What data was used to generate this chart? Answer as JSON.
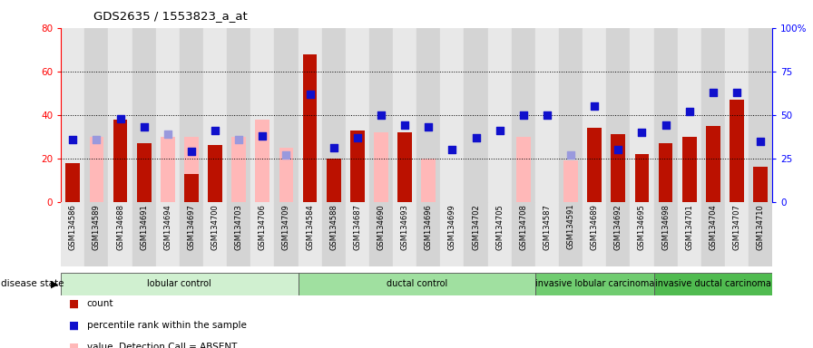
{
  "title": "GDS2635 / 1553823_a_at",
  "samples": [
    "GSM134586",
    "GSM134589",
    "GSM134688",
    "GSM134691",
    "GSM134694",
    "GSM134697",
    "GSM134700",
    "GSM134703",
    "GSM134706",
    "GSM134709",
    "GSM134584",
    "GSM134588",
    "GSM134687",
    "GSM134690",
    "GSM134693",
    "GSM134696",
    "GSM134699",
    "GSM134702",
    "GSM134705",
    "GSM134708",
    "GSM134587",
    "GSM134591",
    "GSM134689",
    "GSM134692",
    "GSM134695",
    "GSM134698",
    "GSM134701",
    "GSM134704",
    "GSM134707",
    "GSM134710"
  ],
  "red_bars": [
    18,
    0,
    38,
    27,
    0,
    13,
    26,
    0,
    0,
    0,
    68,
    20,
    33,
    0,
    32,
    0,
    0,
    0,
    0,
    0,
    0,
    0,
    34,
    31,
    22,
    27,
    30,
    35,
    47,
    16
  ],
  "pink_bars": [
    0,
    30,
    0,
    0,
    30,
    30,
    0,
    30,
    38,
    25,
    0,
    0,
    0,
    32,
    0,
    20,
    0,
    0,
    0,
    30,
    0,
    19,
    0,
    0,
    0,
    0,
    0,
    0,
    0,
    0
  ],
  "blue_squares": [
    36,
    0,
    48,
    43,
    39,
    29,
    41,
    0,
    38,
    0,
    62,
    31,
    37,
    50,
    44,
    43,
    30,
    37,
    41,
    50,
    50,
    0,
    55,
    30,
    40,
    44,
    52,
    63,
    63,
    35
  ],
  "light_blue_sq": [
    0,
    36,
    0,
    0,
    39,
    0,
    0,
    36,
    0,
    27,
    0,
    0,
    0,
    0,
    0,
    0,
    0,
    0,
    0,
    0,
    0,
    27,
    0,
    0,
    0,
    0,
    0,
    0,
    0,
    0
  ],
  "absent_red": [
    false,
    true,
    false,
    false,
    true,
    true,
    false,
    true,
    true,
    true,
    false,
    false,
    false,
    true,
    false,
    true,
    true,
    true,
    true,
    true,
    true,
    true,
    false,
    false,
    false,
    false,
    false,
    false,
    false,
    false
  ],
  "absent_blue": [
    false,
    true,
    false,
    false,
    true,
    false,
    false,
    true,
    false,
    true,
    false,
    false,
    false,
    false,
    false,
    false,
    false,
    false,
    false,
    false,
    false,
    true,
    false,
    false,
    false,
    false,
    false,
    false,
    false,
    false
  ],
  "groups": [
    {
      "label": "lobular control",
      "start": 0,
      "end": 10,
      "color": "#d0f0d0"
    },
    {
      "label": "ductal control",
      "start": 10,
      "end": 20,
      "color": "#a0e0a0"
    },
    {
      "label": "invasive lobular carcinoma",
      "start": 20,
      "end": 25,
      "color": "#70cc70"
    },
    {
      "label": "invasive ductal carcinoma",
      "start": 25,
      "end": 30,
      "color": "#50bb50"
    }
  ],
  "ylim_left": [
    0,
    80
  ],
  "ylim_right": [
    0,
    100
  ],
  "yticks_left": [
    0,
    20,
    40,
    60,
    80
  ],
  "yticks_right": [
    0,
    25,
    50,
    75,
    100
  ],
  "bar_color": "#bb1100",
  "pink_color": "#ffb8b8",
  "blue_color": "#1010cc",
  "light_blue_color": "#9999dd",
  "bg_color": "#ffffff",
  "plot_bg": "#ffffff"
}
